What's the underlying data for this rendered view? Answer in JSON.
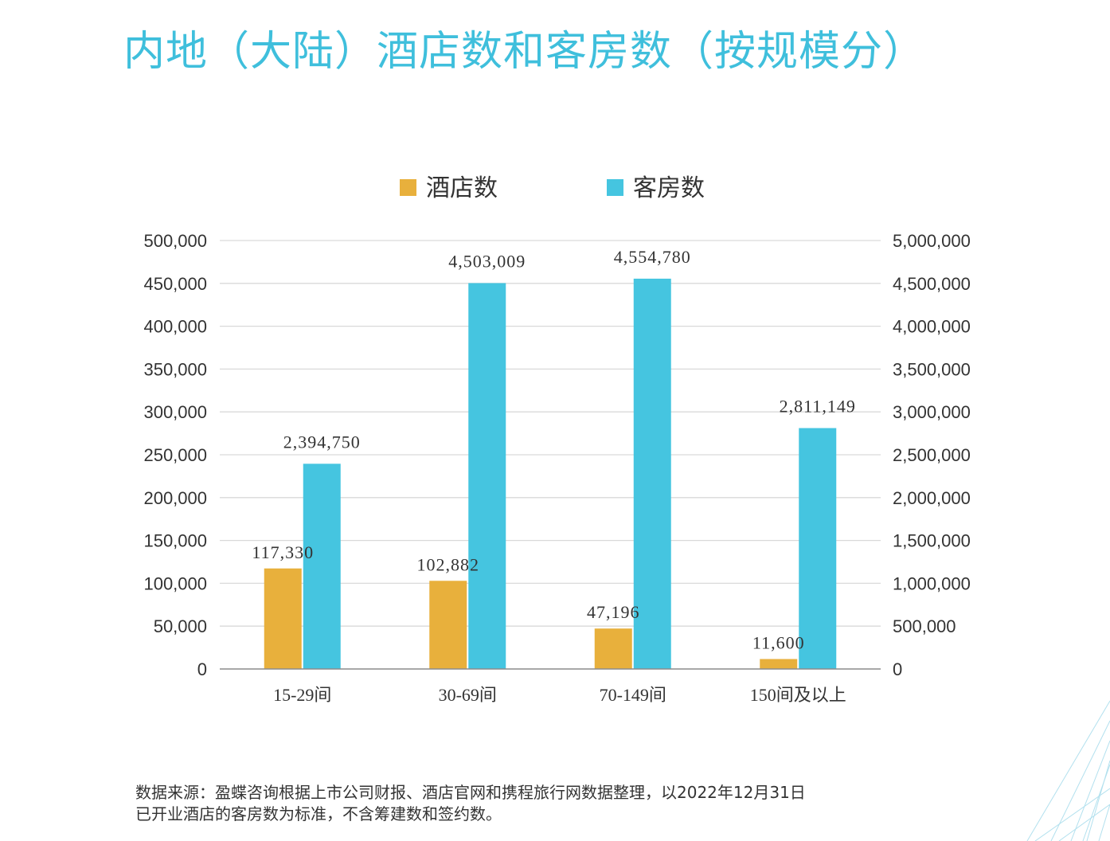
{
  "page": {
    "title": "内地（大陆）酒店数和客房数（按规模分）",
    "source_line1": "数据来源：盈蝶咨询根据上市公司财报、酒店官网和携程旅行网数据整理，以2022年12月31日",
    "source_line2": "已开业酒店的客房数为标准，不含筹建数和签约数。"
  },
  "colors": {
    "title": "#3fbfdc",
    "hotels": "#e8b03c",
    "rooms": "#45c5e0",
    "grid": "#d9d9d9",
    "axis": "#8c8c8c",
    "text": "#333333"
  },
  "chart_data": {
    "type": "bar",
    "categories": [
      "15-29间",
      "30-69间",
      "70-149间",
      "150间及以上"
    ],
    "series": [
      {
        "name": "酒店数",
        "axis": "left",
        "values": [
          117330,
          102882,
          47196,
          11600
        ],
        "labels": [
          "117,330",
          "102,882",
          "47,196",
          "11,600"
        ]
      },
      {
        "name": "客房数",
        "axis": "right",
        "values": [
          2394750,
          4503009,
          4554780,
          2811149
        ],
        "labels": [
          "2,394,750",
          "4,503,009",
          "4,554,780",
          "2,811,149"
        ]
      }
    ],
    "ylim_left": [
      0,
      500000
    ],
    "ylim_right": [
      0,
      5000000
    ],
    "yticks_left": [
      "0",
      "50,000",
      "100,000",
      "150,000",
      "200,000",
      "250,000",
      "300,000",
      "350,000",
      "400,000",
      "450,000",
      "500,000"
    ],
    "yticks_right": [
      "0",
      "500,000",
      "1,000,000",
      "1,500,000",
      "2,000,000",
      "2,500,000",
      "3,000,000",
      "3,500,000",
      "4,000,000",
      "4,500,000",
      "5,000,000"
    ],
    "grid": true,
    "legend_position": "top-center"
  }
}
